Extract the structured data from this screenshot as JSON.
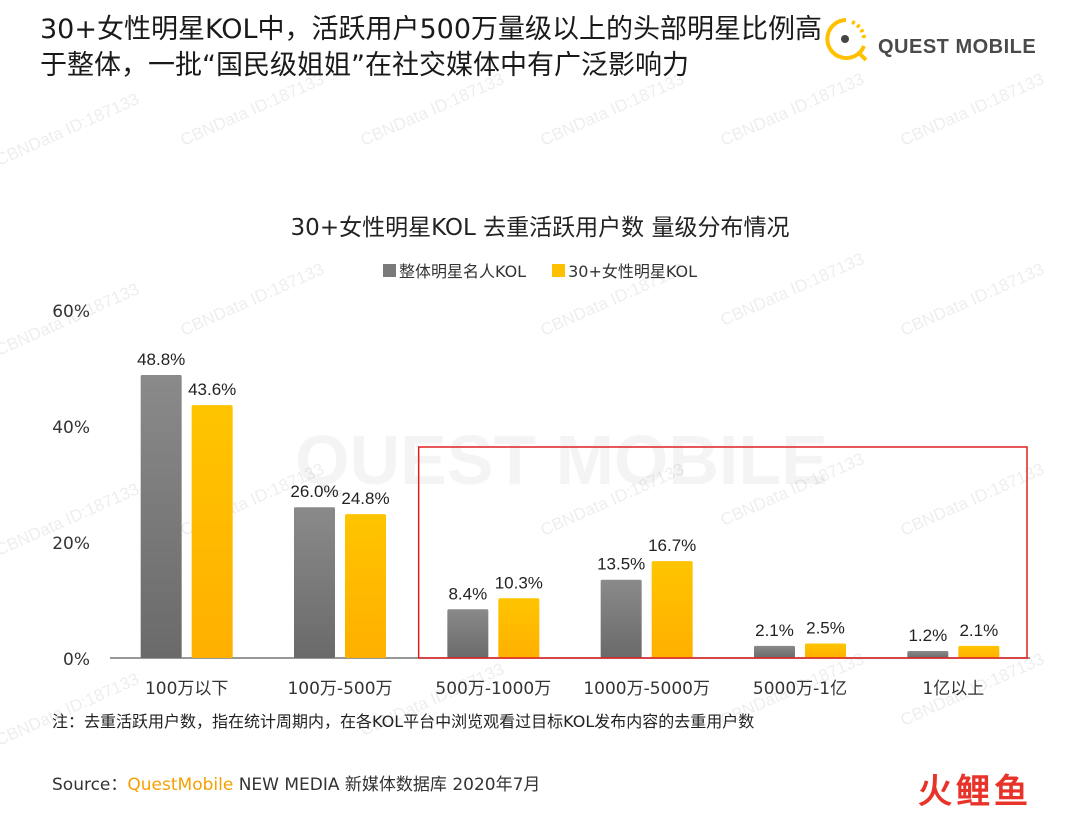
{
  "headline": {
    "line1": "30+女性明星KOL中，活跃用户500万量级以上的头部明星比例高",
    "line2": "于整体，一批“国民级姐姐”在社交媒体中有广泛影响力"
  },
  "logo": {
    "text": "QUEST MOBILE",
    "icon": "quest-mobile-logo-icon"
  },
  "watermark": {
    "text": "CBNData ID:187133",
    "big_text": "QUEST MOBILE"
  },
  "chart_data": {
    "type": "bar",
    "title": "30+女性明星KOL 去重活跃用户数 量级分布情况",
    "categories": [
      "100万以下",
      "100万-500万",
      "500万-1000万",
      "1000万-5000万",
      "5000万-1亿",
      "1亿以上"
    ],
    "series": [
      {
        "name": "整体明星名人KOL",
        "values": [
          48.8,
          26.0,
          8.4,
          13.5,
          2.1,
          1.2
        ],
        "labels": [
          "48.8%",
          "26.0%",
          "8.4%",
          "13.5%",
          "2.1%",
          "1.2%"
        ],
        "color": "#7a7a7a"
      },
      {
        "name": "30+女性明星KOL",
        "values": [
          43.6,
          24.8,
          10.3,
          16.7,
          2.5,
          2.1
        ],
        "labels": [
          "43.6%",
          "24.8%",
          "10.3%",
          "16.7%",
          "2.5%",
          "2.1%"
        ],
        "color": "#ffc000"
      }
    ],
    "yticks": [
      0,
      20,
      40,
      60
    ],
    "ytick_labels": [
      "0%",
      "20%",
      "40%",
      "60%"
    ],
    "ylim": [
      0,
      60
    ],
    "xlabel": "",
    "ylabel": "",
    "grid": false,
    "legend": "top-center",
    "highlight_box": {
      "from_category": "500万-1000万",
      "to_category": "1亿以上",
      "color": "#e02020"
    }
  },
  "note": "注：去重活跃用户数，指在统计周期内，在各KOL平台中浏览观看过目标KOL发布内容的去重用户数",
  "source": {
    "prefix": "Source：",
    "brand": "QuestMobile",
    "rest": " NEW MEDIA 新媒体数据库 2020年7月"
  },
  "brand_mark": {
    "c1": "火",
    "c2": "鲤",
    "c3": "鱼"
  }
}
